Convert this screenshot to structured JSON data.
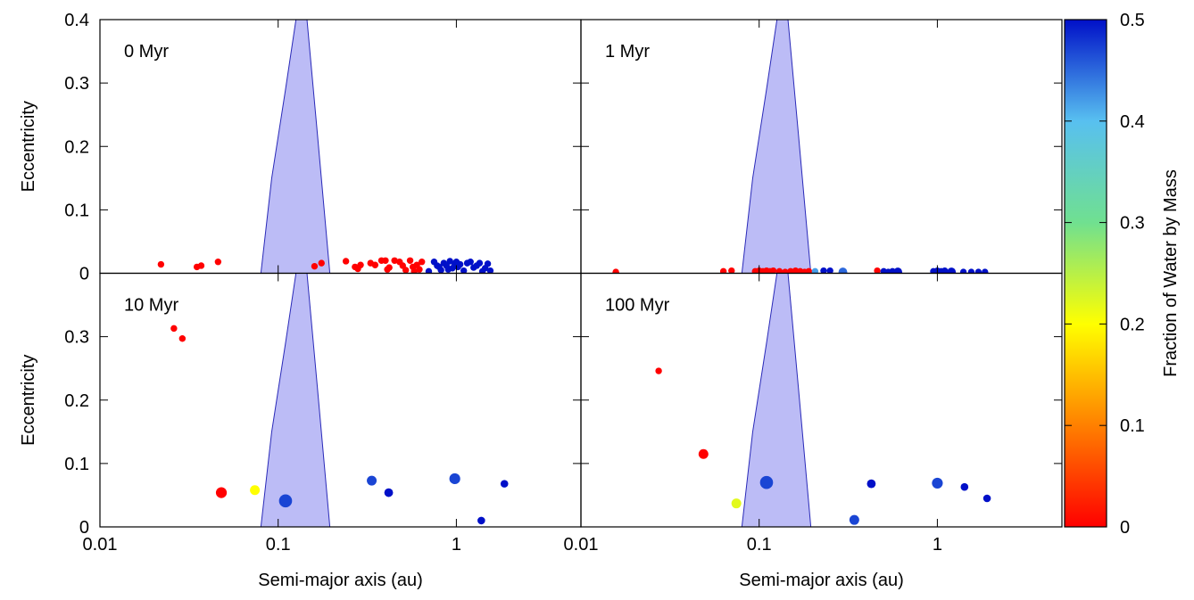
{
  "chart_data": [
    {
      "type": "scatter",
      "label": "0 Myr",
      "ylabel": "Eccentricity",
      "xlim": [
        0.01,
        5
      ],
      "xticks": [
        0.01,
        0.1,
        1
      ],
      "xlog": true,
      "ylim": [
        0,
        0.4
      ],
      "yticks": [
        0,
        0.1,
        0.2,
        0.3,
        0.4
      ],
      "region": {
        "x": [
          0.08,
          0.092,
          0.11,
          0.129,
          0.143,
          0.166,
          0.195
        ],
        "y": [
          0,
          0.15,
          0.29,
          0.42,
          0.42,
          0.22,
          0
        ],
        "color": "#bcbcf6",
        "edge_color": "#2a2ab8"
      },
      "series": [
        {
          "x": [
            0.022,
            0.035,
            0.037,
            0.046,
            0.16,
            0.175,
            0.24,
            0.27,
            0.28,
            0.29,
            0.33,
            0.35,
            0.38,
            0.4,
            0.41,
            0.42,
            0.45,
            0.48,
            0.5,
            0.52,
            0.55,
            0.57,
            0.58,
            0.6,
            0.62,
            0.64,
            0.7,
            0.75,
            0.78,
            0.8,
            0.82,
            0.85,
            0.88,
            0.9,
            0.92,
            0.95,
            0.98,
            1.0,
            1.02,
            1.05,
            1.1,
            1.15,
            1.2,
            1.25,
            1.3,
            1.35,
            1.4,
            1.45,
            1.5,
            1.55
          ],
          "y": [
            0.014,
            0.01,
            0.012,
            0.018,
            0.011,
            0.016,
            0.019,
            0.01,
            0.007,
            0.013,
            0.016,
            0.013,
            0.02,
            0.02,
            0.006,
            0.009,
            0.02,
            0.018,
            0.012,
            0.005,
            0.02,
            0.01,
            0.003,
            0.013,
            0.006,
            0.018,
            0.003,
            0.018,
            0.012,
            0.01,
            0.005,
            0.016,
            0.012,
            0.006,
            0.019,
            0.008,
            0.015,
            0.018,
            0.01,
            0.014,
            0.004,
            0.016,
            0.018,
            0.009,
            0.012,
            0.016,
            0.003,
            0.008,
            0.015,
            0.004
          ],
          "mass": [
            1,
            1,
            1,
            1,
            1,
            1,
            1,
            1,
            1,
            1,
            1,
            1,
            1,
            1,
            1,
            1,
            1,
            1,
            1,
            1,
            1,
            1,
            1,
            1,
            1,
            1,
            1,
            1,
            1,
            1,
            1,
            1,
            1,
            1,
            1,
            1,
            1,
            1,
            1,
            1,
            1,
            1,
            1,
            1,
            1,
            1,
            1,
            1,
            1,
            1
          ],
          "water": [
            0,
            0,
            0,
            0,
            0,
            0,
            0,
            0,
            0,
            0,
            0,
            0,
            0,
            0,
            0,
            0,
            0,
            0,
            0,
            0,
            0,
            0,
            0,
            0,
            0,
            0,
            0.5,
            0.5,
            0.5,
            0.5,
            0.5,
            0.5,
            0.5,
            0.5,
            0.5,
            0.5,
            0.5,
            0.5,
            0.5,
            0.5,
            0.5,
            0.5,
            0.5,
            0.5,
            0.5,
            0.5,
            0.5,
            0.5,
            0.5,
            0.5
          ]
        }
      ]
    },
    {
      "type": "scatter",
      "label": "1 Myr",
      "xlim": [
        0.01,
        5
      ],
      "xticks": [
        0.01,
        0.1,
        1
      ],
      "xlog": true,
      "ylim": [
        0,
        0.4
      ],
      "yticks": [
        0,
        0.1,
        0.2,
        0.3,
        0.4
      ],
      "region": {
        "x": [
          0.08,
          0.092,
          0.11,
          0.129,
          0.143,
          0.166,
          0.195
        ],
        "y": [
          0,
          0.15,
          0.29,
          0.42,
          0.42,
          0.22,
          0
        ],
        "color": "#bcbcf6",
        "edge_color": "#2a2ab8"
      },
      "series": [
        {
          "x": [
            0.0157,
            0.063,
            0.07,
            0.095,
            0.1,
            0.105,
            0.11,
            0.115,
            0.12,
            0.13,
            0.14,
            0.15,
            0.16,
            0.17,
            0.18,
            0.19,
            0.206,
            0.23,
            0.25,
            0.295,
            0.46,
            0.5,
            0.53,
            0.56,
            0.6,
            0.95,
            1.0,
            1.05,
            1.1,
            1.2,
            1.4,
            1.55,
            1.7,
            1.85
          ],
          "y": [
            0.002,
            0.003,
            0.004,
            0.003,
            0.004,
            0.003,
            0.004,
            0.003,
            0.004,
            0.003,
            0.002,
            0.003,
            0.004,
            0.003,
            0.002,
            0.003,
            0.003,
            0.004,
            0.004,
            0.002,
            0.004,
            0.003,
            0.002,
            0.003,
            0.002,
            0.003,
            0.004,
            0.003,
            0.004,
            0.002,
            0.002,
            0.002,
            0.002,
            0.002
          ],
          "mass": [
            1,
            1,
            1,
            1,
            1,
            1,
            1,
            1,
            1,
            1,
            1,
            1,
            1,
            1,
            1,
            1,
            1,
            1,
            1,
            2,
            1,
            1,
            1,
            1,
            2,
            1,
            1,
            1,
            1,
            2,
            1,
            1,
            1,
            1
          ],
          "water": [
            0,
            0,
            0,
            0,
            0,
            0,
            0,
            0,
            0,
            0,
            0,
            0,
            0,
            0,
            0,
            0,
            0.42,
            0.5,
            0.5,
            0.45,
            0,
            0.5,
            0.5,
            0.5,
            0.5,
            0.5,
            0.5,
            0.5,
            0.5,
            0.5,
            0.5,
            0.5,
            0.5,
            0.5
          ]
        }
      ]
    },
    {
      "type": "scatter",
      "label": "10 Myr",
      "ylabel": "Eccentricity",
      "xlabel": "Semi-major axis (au)",
      "xlim": [
        0.01,
        5
      ],
      "xticks": [
        0.01,
        0.1,
        1
      ],
      "xlog": true,
      "ylim": [
        0,
        0.4
      ],
      "yticks": [
        0,
        0.1,
        0.2,
        0.3
      ],
      "region": {
        "x": [
          0.08,
          0.092,
          0.11,
          0.129,
          0.143,
          0.166,
          0.195
        ],
        "y": [
          0,
          0.15,
          0.29,
          0.42,
          0.42,
          0.22,
          0
        ],
        "color": "#bcbcf6",
        "edge_color": "#2a2ab8"
      },
      "series": [
        {
          "x": [
            0.026,
            0.029,
            0.048,
            0.074,
            0.11,
            0.335,
            0.417,
            0.98,
            1.86,
            1.38
          ],
          "y": [
            0.313,
            0.297,
            0.054,
            0.058,
            0.041,
            0.073,
            0.054,
            0.076,
            0.068,
            0.01
          ],
          "mass": [
            1,
            1,
            3,
            2.5,
            4,
            2.5,
            2,
            3,
            1.5,
            1.5
          ],
          "water": [
            0,
            0,
            0,
            0.2,
            0.47,
            0.47,
            0.5,
            0.47,
            0.5,
            0.5
          ]
        }
      ]
    },
    {
      "type": "scatter",
      "label": "100 Myr",
      "xlabel": "Semi-major axis (au)",
      "xlim": [
        0.01,
        5
      ],
      "xticks": [
        0.01,
        0.1,
        1
      ],
      "xlog": true,
      "ylim": [
        0,
        0.4
      ],
      "yticks": [
        0,
        0.1,
        0.2,
        0.3
      ],
      "region": {
        "x": [
          0.08,
          0.092,
          0.11,
          0.129,
          0.143,
          0.166,
          0.195
        ],
        "y": [
          0,
          0.15,
          0.29,
          0.42,
          0.42,
          0.22,
          0
        ],
        "color": "#bcbcf6",
        "edge_color": "#2a2ab8"
      },
      "series": [
        {
          "x": [
            0.0273,
            0.0487,
            0.0745,
            0.11,
            0.342,
            0.426,
            1.0,
            1.42,
            1.9
          ],
          "y": [
            0.246,
            0.115,
            0.037,
            0.07,
            0.011,
            0.068,
            0.069,
            0.063,
            0.045
          ],
          "mass": [
            1,
            2.5,
            2.5,
            4,
            2.5,
            2,
            3,
            1.5,
            1.5
          ],
          "water": [
            0,
            0,
            0.22,
            0.47,
            0.47,
            0.5,
            0.47,
            0.5,
            0.5
          ]
        }
      ]
    }
  ],
  "colorbar": {
    "label": "Fraction of Water by Mass",
    "lim": [
      0,
      0.5
    ],
    "ticks": [
      0,
      0.1,
      0.2,
      0.3,
      0.4,
      0.5
    ],
    "colors": [
      "#ff0000",
      "#ff8000",
      "#ffff00",
      "#70e090",
      "#58c0f0",
      "#0010c8"
    ]
  }
}
